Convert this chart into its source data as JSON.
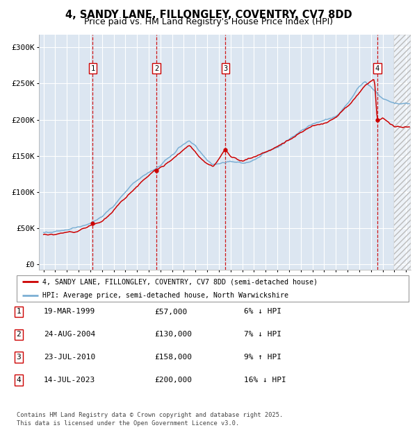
{
  "title": "4, SANDY LANE, FILLONGLEY, COVENTRY, CV7 8DD",
  "subtitle": "Price paid vs. HM Land Registry's House Price Index (HPI)",
  "ylabel_ticks": [
    "£0",
    "£50K",
    "£100K",
    "£150K",
    "£200K",
    "£250K",
    "£300K"
  ],
  "ytick_values": [
    0,
    50000,
    100000,
    150000,
    200000,
    250000,
    300000
  ],
  "ylim": [
    -8000,
    318000
  ],
  "xlim_start": 1994.6,
  "xlim_end": 2026.4,
  "sale_dates": [
    1999.21,
    2004.65,
    2010.55,
    2023.54
  ],
  "sale_prices": [
    57000,
    130000,
    158000,
    200000
  ],
  "sale_labels": [
    "1",
    "2",
    "3",
    "4"
  ],
  "legend_line1": "4, SANDY LANE, FILLONGLEY, COVENTRY, CV7 8DD (semi-detached house)",
  "legend_line2": "HPI: Average price, semi-detached house, North Warwickshire",
  "table_data": [
    [
      "1",
      "19-MAR-1999",
      "£57,000",
      "6% ↓ HPI"
    ],
    [
      "2",
      "24-AUG-2004",
      "£130,000",
      "7% ↓ HPI"
    ],
    [
      "3",
      "23-JUL-2010",
      "£158,000",
      "9% ↑ HPI"
    ],
    [
      "4",
      "14-JUL-2023",
      "£200,000",
      "16% ↓ HPI"
    ]
  ],
  "footer": "Contains HM Land Registry data © Crown copyright and database right 2025.\nThis data is licensed under the Open Government Licence v3.0.",
  "red_color": "#cc0000",
  "blue_color": "#7bafd4",
  "bg_color": "#dce6f1",
  "grid_color": "#ffffff",
  "future_start": 2025.0,
  "title_fontsize": 10.5,
  "subtitle_fontsize": 9
}
